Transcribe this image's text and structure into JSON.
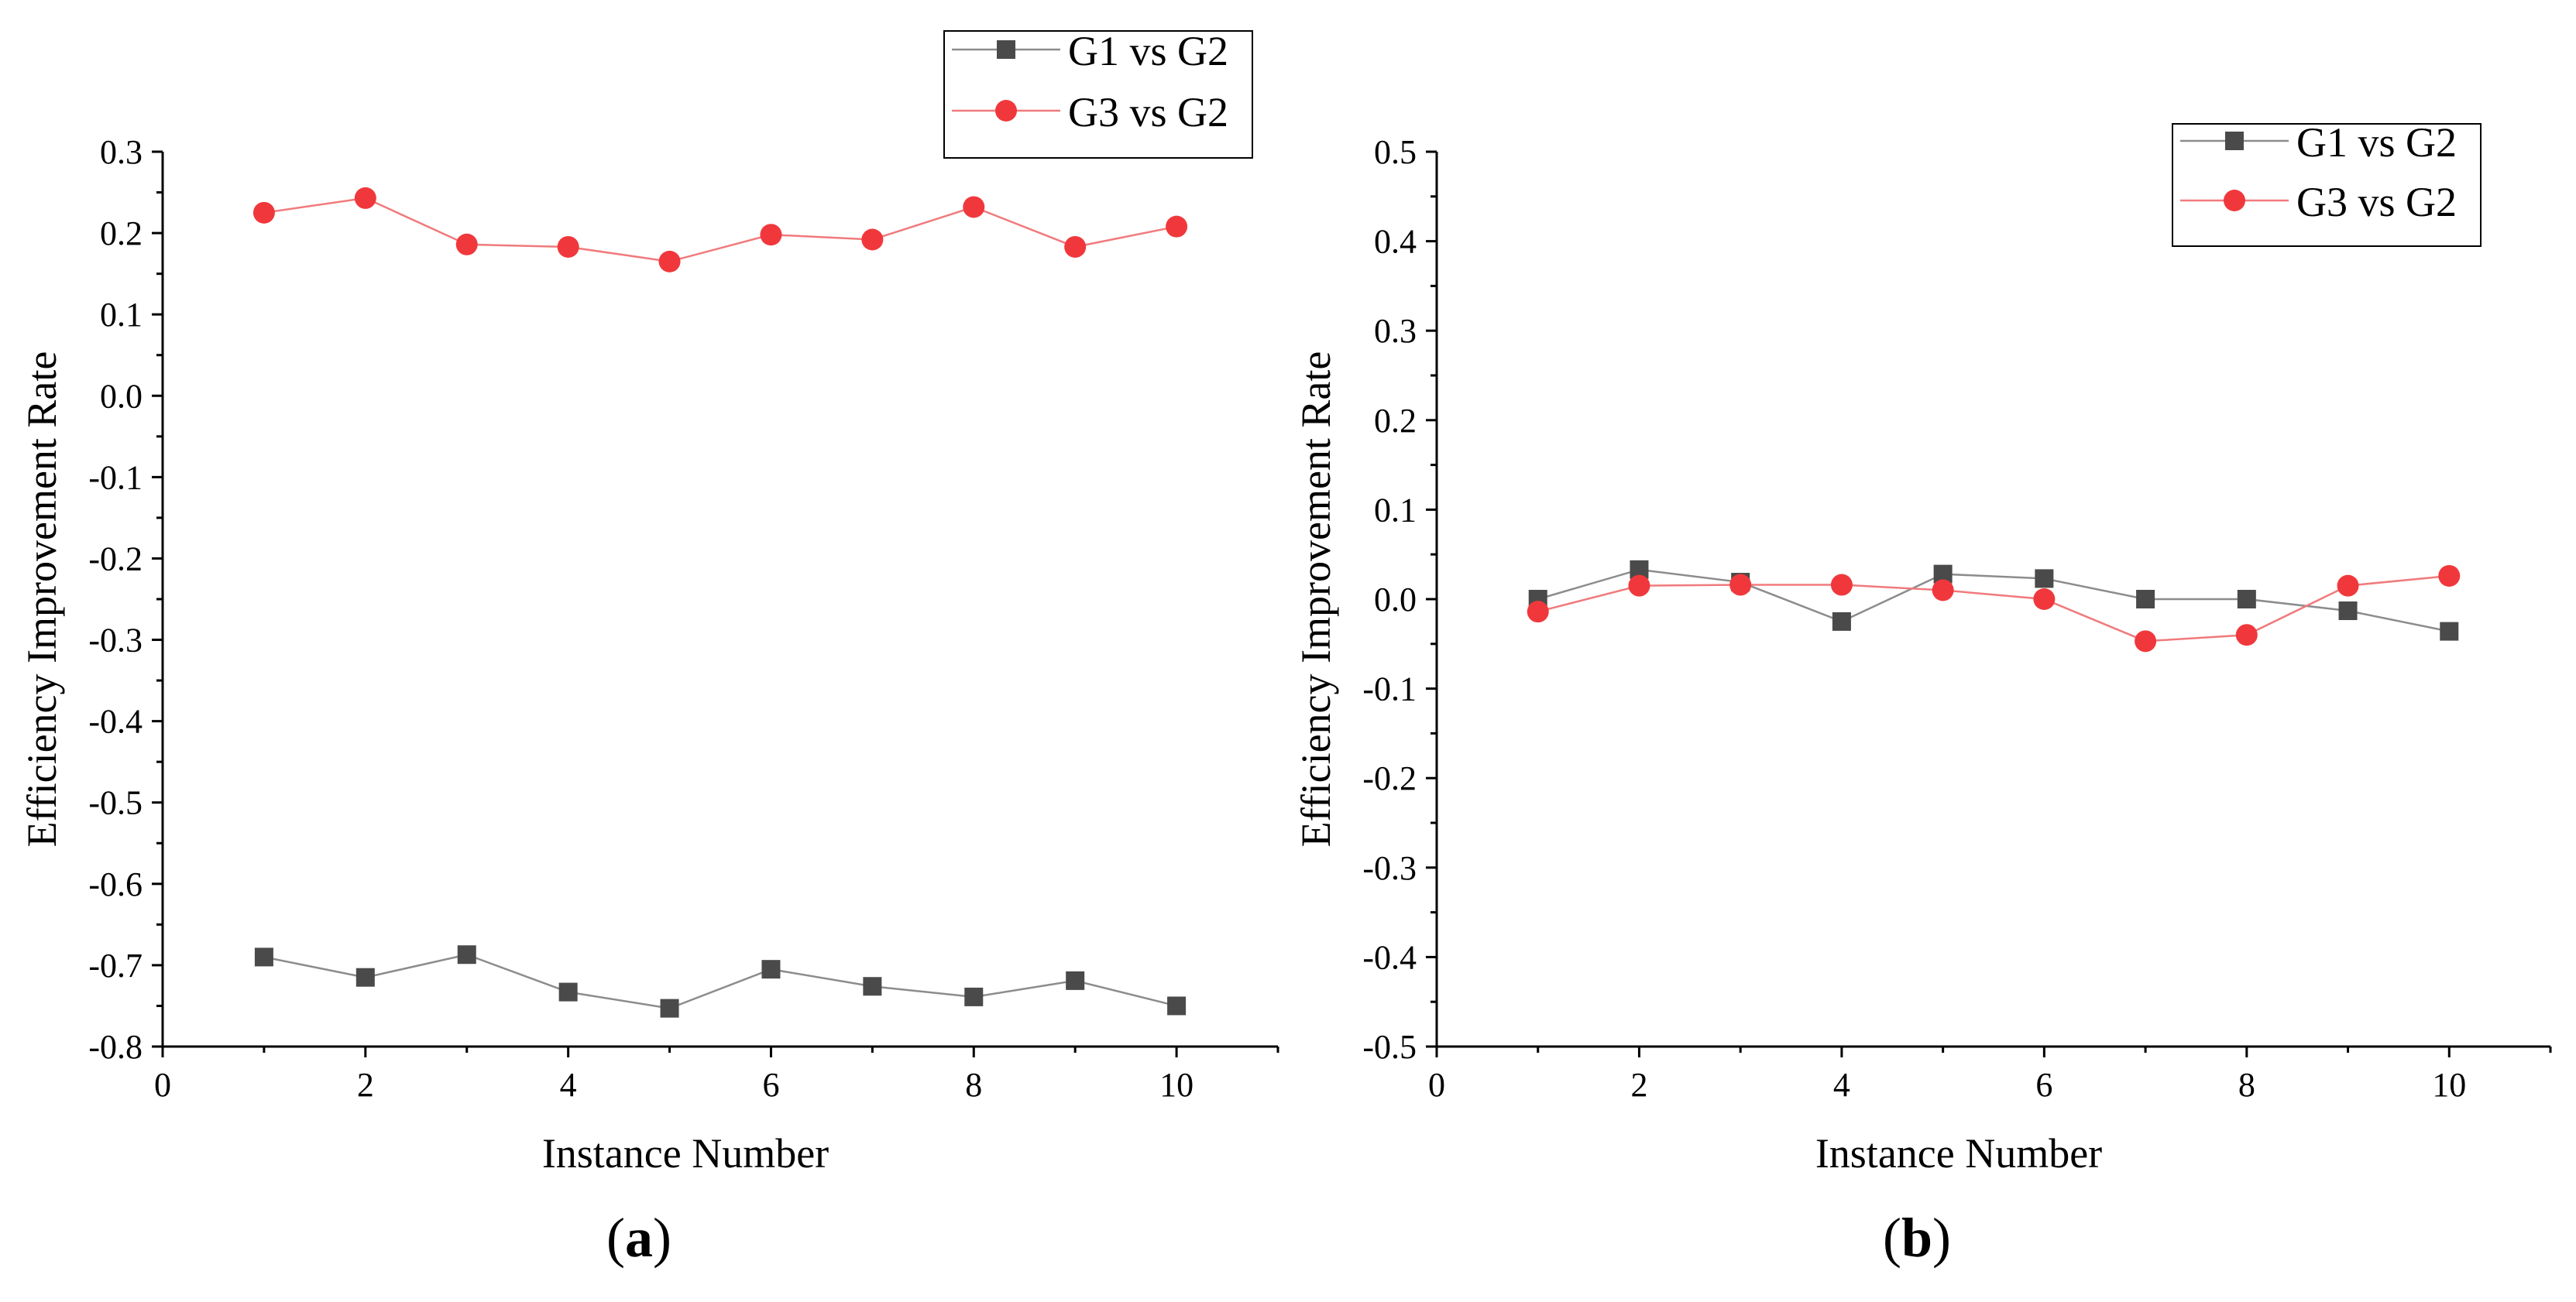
{
  "chart_data": [
    {
      "type": "line",
      "panel": "a",
      "panel_label": "a",
      "xlabel": "Instance Number",
      "ylabel": "Efficiency Improvement Rate",
      "xlim": [
        0,
        11
      ],
      "ylim": [
        -0.8,
        0.3
      ],
      "x_ticks": [
        0,
        2,
        4,
        6,
        8,
        10
      ],
      "x_tick_labels": [
        "0",
        "2",
        "4",
        "6",
        "8",
        "10"
      ],
      "y_ticks": [
        0.3,
        0.2,
        0.1,
        0.0,
        -0.1,
        -0.2,
        -0.3,
        -0.4,
        -0.5,
        -0.6,
        -0.7,
        -0.8
      ],
      "y_tick_labels": [
        "0.3",
        "0.2",
        "0.1",
        "0.0",
        "-0.1",
        "-0.2",
        "-0.3",
        "-0.4",
        "-0.5",
        "-0.6",
        "-0.7",
        "-0.8"
      ],
      "legend_position": "top-right, above plot",
      "x": [
        1,
        2,
        3,
        4,
        5,
        6,
        7,
        8,
        9,
        10
      ],
      "series": [
        {
          "name": "G1 vs G2",
          "marker": "square",
          "color": "#4a4a4a",
          "line_color": "#8c8c8c",
          "values": [
            -0.69,
            -0.715,
            -0.687,
            -0.733,
            -0.753,
            -0.705,
            -0.726,
            -0.739,
            -0.719,
            -0.75
          ]
        },
        {
          "name": "G3 vs G2",
          "marker": "circle",
          "color": "#f0383c",
          "line_color": "#f07a7c",
          "values": [
            0.225,
            0.243,
            0.186,
            0.183,
            0.165,
            0.198,
            0.192,
            0.232,
            0.183,
            0.208
          ]
        }
      ]
    },
    {
      "type": "line",
      "panel": "b",
      "panel_label": "b",
      "xlabel": "Instance Number",
      "ylabel": "Efficiency Improvement Rate",
      "xlim": [
        0,
        11
      ],
      "ylim": [
        -0.5,
        0.5
      ],
      "x_ticks": [
        0,
        2,
        4,
        6,
        8,
        10
      ],
      "x_tick_labels": [
        "0",
        "2",
        "4",
        "6",
        "8",
        "10"
      ],
      "y_ticks": [
        0.5,
        0.4,
        0.3,
        0.2,
        0.1,
        0.0,
        -0.1,
        -0.2,
        -0.3,
        -0.4,
        -0.5
      ],
      "y_tick_labels": [
        "0.5",
        "0.4",
        "0.3",
        "0.2",
        "0.1",
        "0.0",
        "-0.1",
        "-0.2",
        "-0.3",
        "-0.4",
        "-0.5"
      ],
      "legend_position": "top-right",
      "x": [
        1,
        2,
        3,
        4,
        5,
        6,
        7,
        8,
        9,
        10
      ],
      "series": [
        {
          "name": "G1 vs G2",
          "marker": "square",
          "color": "#4a4a4a",
          "line_color": "#8c8c8c",
          "values": [
            0.0,
            0.033,
            0.019,
            -0.025,
            0.028,
            0.023,
            0.0,
            0.0,
            -0.013,
            -0.036
          ]
        },
        {
          "name": "G3 vs G2",
          "marker": "circle",
          "color": "#f0383c",
          "line_color": "#f07a7c",
          "values": [
            -0.014,
            0.015,
            0.016,
            0.016,
            0.01,
            0.0,
            -0.047,
            -0.04,
            0.015,
            0.026
          ]
        }
      ]
    }
  ]
}
